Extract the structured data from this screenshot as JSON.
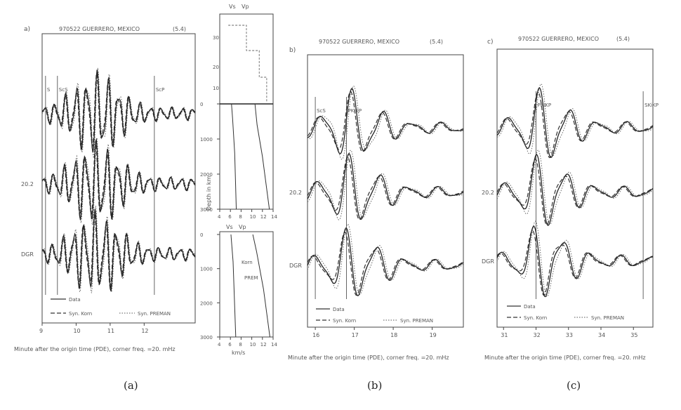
{
  "captions": [
    "(a)",
    "(b)",
    "(c)"
  ],
  "legend": {
    "data": "Data",
    "syn_korn": "Syn. Korn",
    "syn_prem": "Syn. PREMAN"
  },
  "chart_data": [
    {
      "type": "line",
      "panel": "a",
      "title": "970522 GUERRERO, MEXICO",
      "mag": "(5.4)",
      "xlabel": "Minute after the origin time (PDE), corner freq. =20. mHz",
      "xlim": [
        9,
        13.5
      ],
      "ticks": [
        "9",
        "10",
        "11",
        "12"
      ],
      "tick_values": [
        9,
        10,
        11,
        12
      ],
      "trace_labels": [
        "",
        "20.2",
        "DGR"
      ],
      "phases": [
        {
          "label": "S",
          "x": 9.1
        },
        {
          "label": "ScS",
          "x": 9.45
        },
        {
          "label": "ScP",
          "x": 12.3
        }
      ],
      "seed": 1,
      "freq": 3.2,
      "center": 10.6,
      "width": 0.9
    },
    {
      "type": "line",
      "panel": "b",
      "title": "970522 GUERRERO, MEXICO",
      "mag": "(5.4)",
      "xlabel": "Minute after the origin time (PDE), corner freq. =20. mHz",
      "xlim": [
        15.8,
        19.8
      ],
      "ticks": [
        "16",
        "17",
        "18",
        "19"
      ],
      "tick_values": [
        16,
        17,
        18,
        19
      ],
      "trace_labels": [
        "",
        "20.2",
        "DGR"
      ],
      "phases": [
        {
          "label": "ScS",
          "x": 16.0
        },
        {
          "label": "PKiKP",
          "x": 16.8
        }
      ],
      "seed": 2,
      "freq": 1.3,
      "center": 17.0,
      "width": 0.8
    },
    {
      "type": "line",
      "panel": "c",
      "title": "970522 GUERRERO, MEXICO",
      "mag": "(5.4)",
      "xlabel": "Minute after the origin time (PDE), corner freq. =20. mHz",
      "xlim": [
        30.8,
        35.6
      ],
      "ticks": [
        "31",
        "32",
        "33",
        "34",
        "35"
      ],
      "tick_values": [
        31,
        32,
        33,
        34,
        35
      ],
      "trace_labels": [
        "",
        "20.2",
        "DGR"
      ],
      "phases": [
        {
          "label": "PKiKP",
          "x": 32.0
        },
        {
          "label": "SKiKP",
          "x": 35.3
        }
      ],
      "seed": 3,
      "freq": 1.1,
      "center": 32.3,
      "width": 0.9
    },
    {
      "type": "line",
      "panel": "velocity-profile",
      "xlabel": "km/s",
      "ylabel": "Depth in km",
      "xlim": [
        4,
        14
      ],
      "ylim_top": [
        0,
        3000
      ],
      "ticks": [
        "4",
        "6",
        "8",
        "10",
        "12",
        "14"
      ],
      "depth_ticks": [
        "0",
        "1000",
        "2000",
        "3000"
      ],
      "upper_labels": [
        "Vs",
        "Vp",
        "30",
        "20",
        "10"
      ],
      "lower_labels": [
        "Vs",
        "Vp",
        "Korn",
        "PREM"
      ]
    }
  ]
}
